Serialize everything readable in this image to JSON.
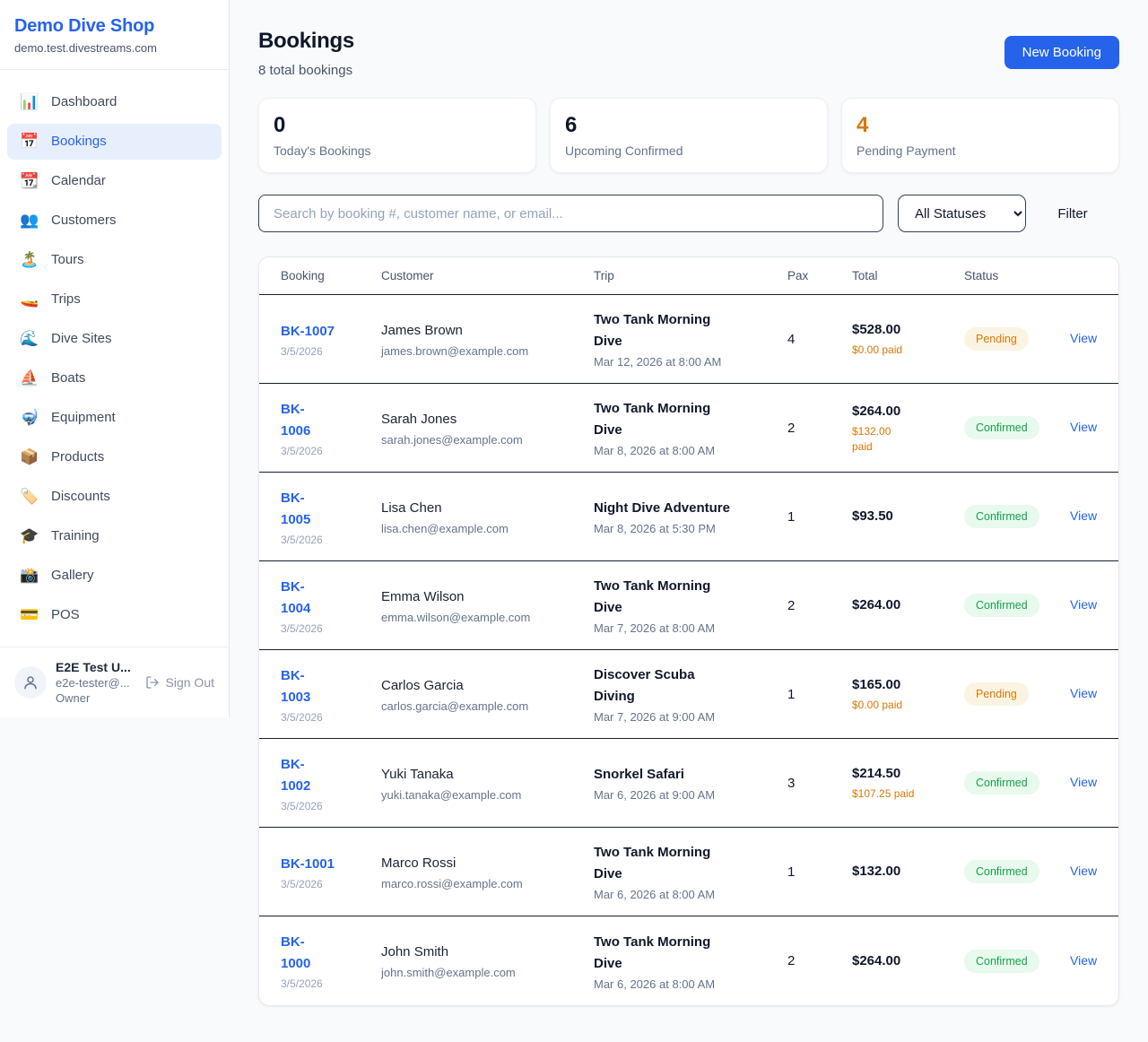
{
  "colors": {
    "accent": "#2563eb",
    "pending_orange": "#d97706",
    "confirmed_green": "#16a34a",
    "page_background": "#f8fafc"
  },
  "sidebar": {
    "shop_name": "Demo Dive Shop",
    "shop_domain": "demo.test.divestreams.com",
    "nav_items": [
      {
        "icon": "📊",
        "icon_name": "dashboard-icon",
        "label": "Dashboard",
        "active": false
      },
      {
        "icon": "📅",
        "icon_name": "bookings-icon",
        "label": "Bookings",
        "active": true
      },
      {
        "icon": "📆",
        "icon_name": "calendar-icon",
        "label": "Calendar",
        "active": false
      },
      {
        "icon": "👥",
        "icon_name": "customers-icon",
        "label": "Customers",
        "active": false
      },
      {
        "icon": "🏝️",
        "icon_name": "tours-icon",
        "label": "Tours",
        "active": false
      },
      {
        "icon": "🚤",
        "icon_name": "trips-icon",
        "label": "Trips",
        "active": false
      },
      {
        "icon": "🌊",
        "icon_name": "dive-sites-icon",
        "label": "Dive Sites",
        "active": false
      },
      {
        "icon": "⛵",
        "icon_name": "boats-icon",
        "label": "Boats",
        "active": false
      },
      {
        "icon": "🤿",
        "icon_name": "equipment-icon",
        "label": "Equipment",
        "active": false
      },
      {
        "icon": "📦",
        "icon_name": "products-icon",
        "label": "Products",
        "active": false
      },
      {
        "icon": "🏷️",
        "icon_name": "discounts-icon",
        "label": "Discounts",
        "active": false
      },
      {
        "icon": "🎓",
        "icon_name": "training-icon",
        "label": "Training",
        "active": false
      },
      {
        "icon": "📸",
        "icon_name": "gallery-icon",
        "label": "Gallery",
        "active": false
      },
      {
        "icon": "💳",
        "icon_name": "pos-icon",
        "label": "POS",
        "active": false
      }
    ],
    "user": {
      "name": "E2E Test U...",
      "email": "e2e-tester@...",
      "role": "Owner",
      "sign_out_label": "Sign Out"
    }
  },
  "header": {
    "title": "Bookings",
    "subtitle": "8 total bookings",
    "new_booking_label": "New Booking"
  },
  "stats": [
    {
      "value": "0",
      "label": "Today's Bookings",
      "value_color": "#0f172a"
    },
    {
      "value": "6",
      "label": "Upcoming Confirmed",
      "value_color": "#0f172a"
    },
    {
      "value": "4",
      "label": "Pending Payment",
      "value_color": "#d97706"
    }
  ],
  "filters": {
    "search_placeholder": "Search by booking #, customer name, or email...",
    "search_value": "",
    "status_selected": "All Statuses",
    "filter_label": "Filter"
  },
  "table": {
    "columns": [
      "Booking",
      "Customer",
      "Trip",
      "Pax",
      "Total",
      "Status",
      ""
    ],
    "rows": [
      {
        "id": "BK-1007",
        "id_wrapped": false,
        "date": "3/5/2026",
        "customer": {
          "name": "James Brown",
          "email": "james.brown@example.com"
        },
        "trip": {
          "name": "Two Tank Morning Dive",
          "wrapped": true,
          "datetime": "Mar 12, 2026 at 8:00 AM"
        },
        "pax": "4",
        "total": "$528.00",
        "paid": "$0.00 paid",
        "paid_wrapped": false,
        "status": "Pending",
        "action": "View"
      },
      {
        "id": "BK-1006",
        "id_wrapped": true,
        "date": "3/5/2026",
        "customer": {
          "name": "Sarah Jones",
          "email": "sarah.jones@example.com"
        },
        "trip": {
          "name": "Two Tank Morning Dive",
          "wrapped": true,
          "datetime": "Mar 8, 2026 at 8:00 AM"
        },
        "pax": "2",
        "total": "$264.00",
        "paid": "$132.00 paid",
        "paid_wrapped": true,
        "status": "Confirmed",
        "action": "View"
      },
      {
        "id": "BK-1005",
        "id_wrapped": true,
        "date": "3/5/2026",
        "customer": {
          "name": "Lisa Chen",
          "email": "lisa.chen@example.com"
        },
        "trip": {
          "name": "Night Dive Adventure",
          "wrapped": false,
          "datetime": "Mar 8, 2026 at 5:30 PM"
        },
        "pax": "1",
        "total": "$93.50",
        "paid": null,
        "paid_wrapped": false,
        "status": "Confirmed",
        "action": "View"
      },
      {
        "id": "BK-1004",
        "id_wrapped": true,
        "date": "3/5/2026",
        "customer": {
          "name": "Emma Wilson",
          "email": "emma.wilson@example.com"
        },
        "trip": {
          "name": "Two Tank Morning Dive",
          "wrapped": true,
          "datetime": "Mar 7, 2026 at 8:00 AM"
        },
        "pax": "2",
        "total": "$264.00",
        "paid": null,
        "paid_wrapped": false,
        "status": "Confirmed",
        "action": "View"
      },
      {
        "id": "BK-1003",
        "id_wrapped": true,
        "date": "3/5/2026",
        "customer": {
          "name": "Carlos Garcia",
          "email": "carlos.garcia@example.com"
        },
        "trip": {
          "name": "Discover Scuba Diving",
          "wrapped": true,
          "datetime": "Mar 7, 2026 at 9:00 AM"
        },
        "pax": "1",
        "total": "$165.00",
        "paid": "$0.00 paid",
        "paid_wrapped": false,
        "status": "Pending",
        "action": "View"
      },
      {
        "id": "BK-1002",
        "id_wrapped": true,
        "date": "3/5/2026",
        "customer": {
          "name": "Yuki Tanaka",
          "email": "yuki.tanaka@example.com"
        },
        "trip": {
          "name": "Snorkel Safari",
          "wrapped": false,
          "datetime": "Mar 6, 2026 at 9:00 AM"
        },
        "pax": "3",
        "total": "$214.50",
        "paid": "$107.25 paid",
        "paid_wrapped": false,
        "status": "Confirmed",
        "action": "View"
      },
      {
        "id": "BK-1001",
        "id_wrapped": false,
        "date": "3/5/2026",
        "customer": {
          "name": "Marco Rossi",
          "email": "marco.rossi@example.com"
        },
        "trip": {
          "name": "Two Tank Morning Dive",
          "wrapped": true,
          "datetime": "Mar 6, 2026 at 8:00 AM"
        },
        "pax": "1",
        "total": "$132.00",
        "paid": null,
        "paid_wrapped": false,
        "status": "Confirmed",
        "action": "View"
      },
      {
        "id": "BK-1000",
        "id_wrapped": true,
        "date": "3/5/2026",
        "customer": {
          "name": "John Smith",
          "email": "john.smith@example.com"
        },
        "trip": {
          "name": "Two Tank Morning Dive",
          "wrapped": true,
          "datetime": "Mar 6, 2026 at 8:00 AM"
        },
        "pax": "2",
        "total": "$264.00",
        "paid": null,
        "paid_wrapped": false,
        "status": "Confirmed",
        "action": "View"
      }
    ]
  }
}
